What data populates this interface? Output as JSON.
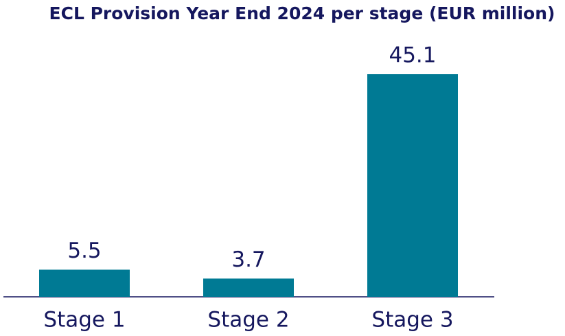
{
  "chart_data": {
    "type": "bar",
    "title": "ECL Provision Year End 2024 per stage (EUR million)",
    "categories": [
      "Stage 1",
      "Stage 2",
      "Stage 3"
    ],
    "values": [
      5.5,
      3.7,
      45.1
    ],
    "color": "#007a94"
  }
}
